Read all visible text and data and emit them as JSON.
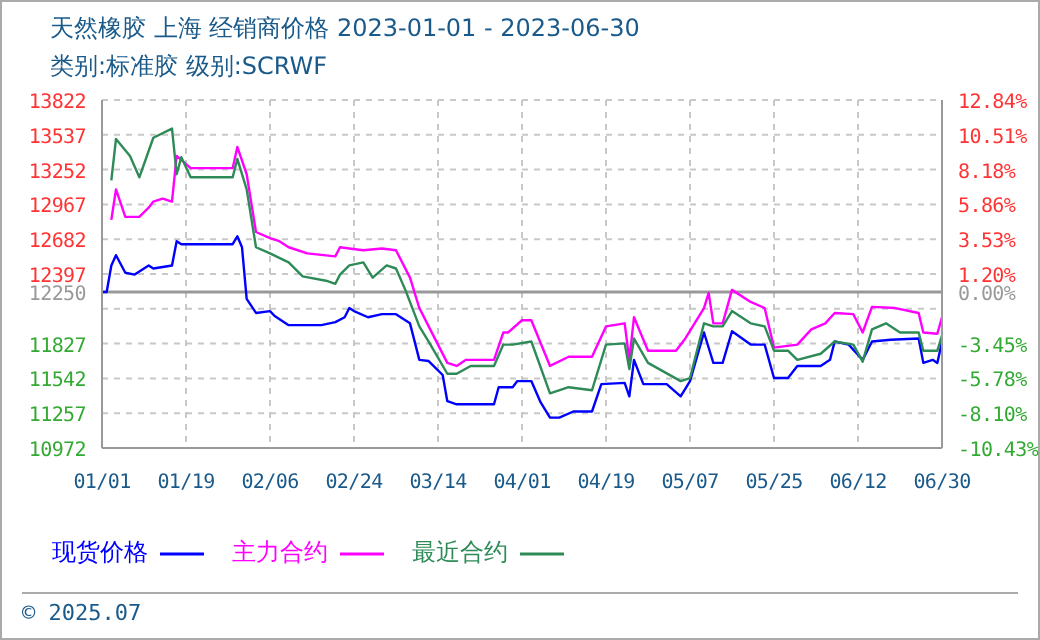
{
  "chart_data": {
    "type": "line",
    "title": "天然橡胶 上海 经销商价格 2023-01-01 - 2023-06-30",
    "subtitle": "类别:标准胶 级别:SCRWF",
    "annotations": [
      "© 2025.07"
    ],
    "xlim": [
      "2023-01-01",
      "2023-06-30"
    ],
    "xticks": [
      {
        "value": "2023-01-01",
        "label": "01/01"
      },
      {
        "value": "2023-01-19",
        "label": "01/19"
      },
      {
        "value": "2023-02-06",
        "label": "02/06"
      },
      {
        "value": "2023-02-24",
        "label": "02/24"
      },
      {
        "value": "2023-03-14",
        "label": "03/14"
      },
      {
        "value": "2023-04-01",
        "label": "04/01"
      },
      {
        "value": "2023-04-19",
        "label": "04/19"
      },
      {
        "value": "2023-05-07",
        "label": "05/07"
      },
      {
        "value": "2023-05-25",
        "label": "05/25"
      },
      {
        "value": "2023-06-12",
        "label": "06/12"
      },
      {
        "value": "2023-06-30",
        "label": "06/30"
      }
    ],
    "ylim": [
      10972,
      13822
    ],
    "yticks": [
      10972,
      11257,
      11542,
      11827,
      {
        "value": 12112,
        "label": null
      },
      12250,
      12397,
      12682,
      12967,
      13252,
      13537,
      13822
    ],
    "y2lim": [
      -10.43,
      12.84
    ],
    "y2ticks": [
      {
        "value": -10.43,
        "label": "-10.43%"
      },
      {
        "value": -8.1,
        "label": "-8.10%"
      },
      {
        "value": -5.78,
        "label": "-5.78%"
      },
      {
        "value": -3.45,
        "label": "-3.45%"
      },
      {
        "value": 0,
        "label": "0.00%"
      },
      {
        "value": 1.2,
        "label": "1.20%"
      },
      {
        "value": 3.53,
        "label": "3.53%"
      },
      {
        "value": 5.86,
        "label": "5.86%"
      },
      {
        "value": 8.18,
        "label": "8.18%"
      },
      {
        "value": 10.51,
        "label": "10.51%"
      },
      {
        "value": 12.84,
        "label": "12.84%"
      }
    ],
    "ref_lines": [
      {
        "axis": "y",
        "value": 12250,
        "color": "#999999"
      }
    ],
    "grid": true,
    "legend": "bottom",
    "marker": "none",
    "line_style": "solid",
    "series": [
      {
        "name": "现货价格",
        "color": "#0000ff",
        "x": [
          "2023-01-01",
          "2023-01-02",
          "2023-01-03",
          "2023-01-04",
          "2023-01-06",
          "2023-01-08",
          "2023-01-10",
          "2023-01-11",
          "2023-01-12",
          "2023-01-16",
          "2023-01-17",
          "2023-01-18",
          "2023-01-29",
          "2023-01-30",
          "2023-01-31",
          "2023-02-01",
          "2023-02-03",
          "2023-02-06",
          "2023-02-07",
          "2023-02-10",
          "2023-02-17",
          "2023-02-20",
          "2023-02-22",
          "2023-02-23",
          "2023-02-24",
          "2023-02-27",
          "2023-03-02",
          "2023-03-05",
          "2023-03-08",
          "2023-03-10",
          "2023-03-12",
          "2023-03-15",
          "2023-03-16",
          "2023-03-18",
          "2023-03-26",
          "2023-03-27",
          "2023-03-30",
          "2023-03-31",
          "2023-04-03",
          "2023-04-05",
          "2023-04-07",
          "2023-04-09",
          "2023-04-12",
          "2023-04-16",
          "2023-04-18",
          "2023-04-23",
          "2023-04-24",
          "2023-04-25",
          "2023-04-27",
          "2023-05-02",
          "2023-05-05",
          "2023-05-07",
          "2023-05-10",
          "2023-05-12",
          "2023-05-14",
          "2023-05-16",
          "2023-05-20",
          "2023-05-23",
          "2023-05-25",
          "2023-05-28",
          "2023-05-30",
          "2023-06-04",
          "2023-06-06",
          "2023-06-07",
          "2023-06-10",
          "2023-06-13",
          "2023-06-15",
          "2023-06-19",
          "2023-06-25",
          "2023-06-26",
          "2023-06-28",
          "2023-06-29",
          "2023-06-30"
        ],
        "values": [
          12250,
          12250,
          12467,
          12551,
          12407,
          12392,
          12442,
          12467,
          12442,
          12467,
          12666,
          12641,
          12641,
          12706,
          12616,
          12193,
          12078,
          12093,
          12053,
          11978,
          11978,
          12003,
          12043,
          12118,
          12093,
          12043,
          12068,
          12068,
          11993,
          11694,
          11684,
          11570,
          11355,
          11330,
          11330,
          11470,
          11470,
          11520,
          11520,
          11345,
          11221,
          11221,
          11271,
          11271,
          11495,
          11505,
          11395,
          11694,
          11495,
          11495,
          11395,
          11520,
          11918,
          11669,
          11669,
          11928,
          11819,
          11819,
          11545,
          11545,
          11644,
          11644,
          11694,
          11844,
          11819,
          11694,
          11844,
          11859,
          11869,
          11669,
          11694,
          11669,
          11844
        ]
      },
      {
        "name": "主力合约",
        "color": "#ff00ff",
        "x": [
          "2023-01-03",
          "2023-01-04",
          "2023-01-06",
          "2023-01-09",
          "2023-01-11",
          "2023-01-12",
          "2023-01-14",
          "2023-01-16",
          "2023-01-17",
          "2023-01-20",
          "2023-01-29",
          "2023-01-30",
          "2023-02-01",
          "2023-02-03",
          "2023-02-06",
          "2023-02-08",
          "2023-02-10",
          "2023-02-14",
          "2023-02-20",
          "2023-02-21",
          "2023-02-23",
          "2023-02-26",
          "2023-03-02",
          "2023-03-05",
          "2023-03-08",
          "2023-03-10",
          "2023-03-12",
          "2023-03-16",
          "2023-03-18",
          "2023-03-20",
          "2023-03-26",
          "2023-03-28",
          "2023-03-29",
          "2023-04-01",
          "2023-04-03",
          "2023-04-07",
          "2023-04-11",
          "2023-04-16",
          "2023-04-19",
          "2023-04-23",
          "2023-04-24",
          "2023-04-25",
          "2023-04-28",
          "2023-05-04",
          "2023-05-06",
          "2023-05-10",
          "2023-05-11",
          "2023-05-12",
          "2023-05-14",
          "2023-05-16",
          "2023-05-20",
          "2023-05-23",
          "2023-05-25",
          "2023-05-30",
          "2023-06-02",
          "2023-06-05",
          "2023-06-07",
          "2023-06-11",
          "2023-06-13",
          "2023-06-15",
          "2023-06-20",
          "2023-06-25",
          "2023-06-26",
          "2023-06-29",
          "2023-06-30"
        ],
        "values": [
          12840,
          13090,
          12865,
          12865,
          12940,
          12990,
          13015,
          12990,
          13364,
          13264,
          13264,
          13438,
          13214,
          12741,
          12691,
          12666,
          12616,
          12566,
          12541,
          12616,
          12606,
          12591,
          12606,
          12591,
          12367,
          12118,
          11968,
          11669,
          11644,
          11694,
          11694,
          11918,
          11918,
          12018,
          12018,
          11644,
          11719,
          11719,
          11968,
          11993,
          11694,
          12043,
          11769,
          11769,
          11869,
          12118,
          12242,
          11993,
          11993,
          12267,
          12168,
          12118,
          11794,
          11819,
          11943,
          11993,
          12078,
          12068,
          11918,
          12128,
          12118,
          12078,
          11918,
          11908,
          12043
        ]
      },
      {
        "name": "最近合约",
        "color": "#2e8b57",
        "x": [
          "2023-01-03",
          "2023-01-04",
          "2023-01-07",
          "2023-01-09",
          "2023-01-12",
          "2023-01-16",
          "2023-01-17",
          "2023-01-18",
          "2023-01-20",
          "2023-01-29",
          "2023-01-30",
          "2023-02-01",
          "2023-02-03",
          "2023-02-06",
          "2023-02-10",
          "2023-02-13",
          "2023-02-18",
          "2023-02-20",
          "2023-02-21",
          "2023-02-23",
          "2023-02-26",
          "2023-02-28",
          "2023-03-03",
          "2023-03-05",
          "2023-03-07",
          "2023-03-10",
          "2023-03-12",
          "2023-03-16",
          "2023-03-18",
          "2023-03-21",
          "2023-03-26",
          "2023-03-28",
          "2023-03-30",
          "2023-04-03",
          "2023-04-07",
          "2023-04-11",
          "2023-04-16",
          "2023-04-19",
          "2023-04-23",
          "2023-04-24",
          "2023-04-25",
          "2023-04-28",
          "2023-05-05",
          "2023-05-07",
          "2023-05-10",
          "2023-05-12",
          "2023-05-14",
          "2023-05-16",
          "2023-05-20",
          "2023-05-23",
          "2023-05-25",
          "2023-05-28",
          "2023-05-30",
          "2023-06-04",
          "2023-06-07",
          "2023-06-11",
          "2023-06-13",
          "2023-06-15",
          "2023-06-18",
          "2023-06-21",
          "2023-06-25",
          "2023-06-26",
          "2023-06-29",
          "2023-06-30"
        ],
        "values": [
          13164,
          13503,
          13364,
          13189,
          13513,
          13588,
          13214,
          13354,
          13189,
          13189,
          13339,
          13090,
          12616,
          12566,
          12492,
          12377,
          12342,
          12317,
          12392,
          12467,
          12492,
          12367,
          12467,
          12442,
          12267,
          11968,
          11844,
          11580,
          11580,
          11644,
          11644,
          11819,
          11819,
          11844,
          11420,
          11470,
          11445,
          11819,
          11829,
          11619,
          11869,
          11669,
          11520,
          11545,
          11993,
          11968,
          11968,
          12093,
          11993,
          11968,
          11769,
          11769,
          11694,
          11744,
          11844,
          11819,
          11679,
          11943,
          11993,
          11918,
          11918,
          11769,
          11769,
          11893
        ]
      }
    ]
  }
}
